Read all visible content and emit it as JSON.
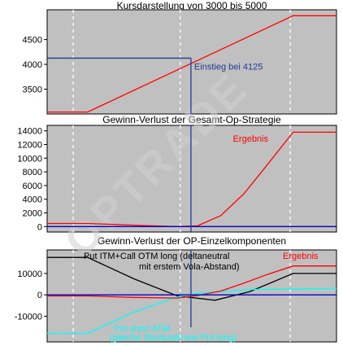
{
  "watermark": "OPTRADE",
  "colors": {
    "plot_bg": "#c0c0c0",
    "grid": "#ffffff",
    "red": "#ff0000",
    "blue": "#0000c8",
    "black": "#000000",
    "cyan": "#00ffff",
    "entry_blue": "#1e3c96",
    "watermark": "#d0d0d0"
  },
  "chart_data": [
    {
      "type": "line",
      "title": "Kursdarstellung von 3000 bis 5000",
      "ylim": [
        3000,
        5100
      ],
      "yticks": [
        3500,
        4000,
        4500
      ],
      "grid": "vertical dashed",
      "series": [
        {
          "color": "#ff0000",
          "x": [
            0,
            0.14,
            0.85,
            1
          ],
          "y": [
            3040,
            3040,
            4980,
            4980
          ]
        }
      ],
      "annotations": [
        {
          "id": "entry",
          "text": "Einstieg bei 4125",
          "y": 4125
        }
      ]
    },
    {
      "type": "line",
      "title": "Gewinn-Verlust der Gesamt-Op-Strategie",
      "ylim": [
        -800,
        14800
      ],
      "yticks": [
        0,
        2000,
        4000,
        6000,
        8000,
        10000,
        12000,
        14000
      ],
      "grid": "vertical dashed",
      "series": [
        {
          "name": "Ergebnis",
          "color": "#ff0000",
          "x": [
            0,
            0.14,
            0.3,
            0.45,
            0.52,
            0.6,
            0.68,
            0.76,
            0.85,
            1
          ],
          "y": [
            450,
            450,
            200,
            -20,
            100,
            1600,
            4800,
            9000,
            13800,
            13800
          ]
        },
        {
          "color": "#0000c8",
          "x": [
            0,
            1
          ],
          "y": [
            0,
            0
          ]
        }
      ],
      "annotations": [
        {
          "id": "ergebnis",
          "text": "Ergebnis"
        }
      ]
    },
    {
      "type": "line",
      "title": "Gewinn-Verlust der OP-Einzelkomponenten",
      "ylim": [
        -22000,
        21000
      ],
      "yticks": [
        -10000,
        0,
        10000
      ],
      "grid": "vertical dashed",
      "series": [
        {
          "name": "Put ITM+Call OTM long",
          "color": "#000000",
          "x": [
            0,
            0.14,
            0.3,
            0.45,
            0.58,
            0.7,
            0.85,
            1
          ],
          "y": [
            17500,
            17500,
            7500,
            -500,
            -2500,
            1500,
            10000,
            10000
          ]
        },
        {
          "name": "Put short ATM",
          "color": "#00ffff",
          "x": [
            0,
            0.14,
            0.3,
            0.45,
            0.52,
            0.7,
            1
          ],
          "y": [
            -18000,
            -18000,
            -8000,
            -1000,
            800,
            2500,
            3000
          ]
        },
        {
          "name": "Ergebnis",
          "color": "#ff0000",
          "x": [
            0,
            0.14,
            0.3,
            0.45,
            0.52,
            0.6,
            0.68,
            0.76,
            0.85,
            1
          ],
          "y": [
            -500,
            -500,
            -1200,
            -1500,
            -300,
            1800,
            5500,
            9500,
            13500,
            13500
          ]
        },
        {
          "color": "#0000c8",
          "x": [
            0,
            1
          ],
          "y": [
            0,
            0
          ]
        }
      ],
      "annotations": [
        {
          "id": "black1",
          "text": "Put ITM+Call OTM long  (deltaneutral"
        },
        {
          "id": "black2",
          "text": "mit erstem Vola-Abstand)"
        },
        {
          "id": "ergebnis",
          "text": "Ergebnis"
        },
        {
          "id": "cyan1",
          "text": "Put short ATM"
        },
        {
          "id": "cyan2",
          "text": "(gleiche Stückzahl wie Put long)"
        }
      ]
    }
  ]
}
